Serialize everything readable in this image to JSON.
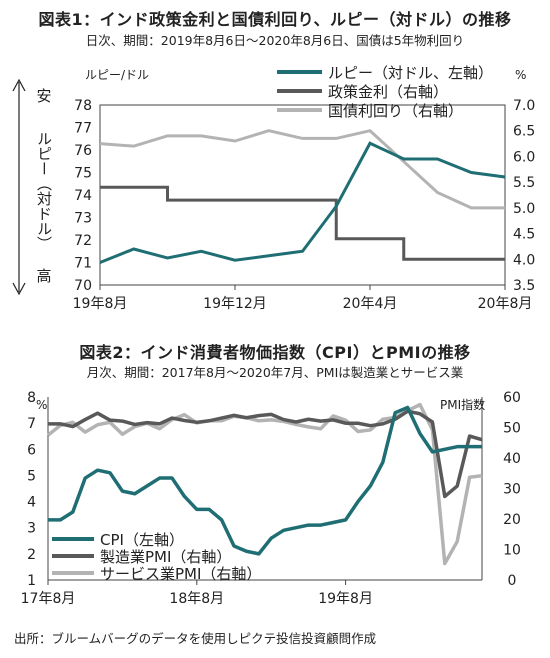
{
  "figure1": {
    "title": "図表1：インド政策金利と国債利回り、ルピー（対ドル）の推移",
    "subtitle": "日次、期間：2019年8月6日～2020年8月6日、国債は5年物利回り",
    "left_unit": "ルピー/ドル",
    "right_unit": "%",
    "side_top": "安",
    "side_mid": "ルピー（対ドル）",
    "side_bottom": "高",
    "legend": [
      "ルピー（対ドル、左軸）",
      "政策金利（右軸）",
      "国債利回り（右軸）"
    ]
  },
  "figure2": {
    "title": "図表2：インド消費者物価指数（CPI）とPMIの推移",
    "subtitle": "月次、期間：2017年8月～2020年7月、PMIは製造業とサービス業",
    "left_unit": "%",
    "right_unit": "PMI指数",
    "legend": [
      "CPI（左軸）",
      "製造業PMI（右軸）",
      "サービス業PMI（右軸）"
    ]
  },
  "source": "出所：ブルームバーグのデータを使用しピクテ投信投資顧問作成",
  "colors": {
    "rupee_cpi": "#1f6e73",
    "policy_mfg": "#595959",
    "bond_services": "#b3b3b3"
  },
  "chart_data": [
    {
      "type": "line",
      "x_ticks": [
        "19年8月",
        "19年12月",
        "20年4月",
        "20年8月"
      ],
      "y_left_ticks": [
        "70",
        "71",
        "72",
        "73",
        "74",
        "75",
        "76",
        "77",
        "78"
      ],
      "y_right_ticks": [
        "3.5",
        "4.0",
        "4.5",
        "5.0",
        "5.5",
        "6.0",
        "6.5",
        "7.0"
      ],
      "ylim_left": [
        70,
        78
      ],
      "ylim_right": [
        3.5,
        7.0
      ],
      "y_left_inverted": true,
      "x": [
        "2019-08",
        "2019-09",
        "2019-10",
        "2019-11",
        "2019-12",
        "2020-01",
        "2020-02",
        "2020-03",
        "2020-04",
        "2020-05",
        "2020-06",
        "2020-07",
        "2020-08"
      ],
      "series": [
        {
          "name": "ルピー（対ドル、左軸）",
          "axis": "left",
          "values": [
            71.0,
            71.6,
            71.2,
            71.5,
            71.1,
            71.3,
            71.5,
            73.5,
            76.3,
            75.6,
            75.6,
            75.0,
            74.8
          ]
        },
        {
          "name": "政策金利（右軸）",
          "axis": "right",
          "values": [
            5.4,
            5.4,
            5.15,
            5.15,
            5.15,
            5.15,
            5.15,
            4.4,
            4.4,
            4.0,
            4.0,
            4.0,
            4.0
          ]
        },
        {
          "name": "国債利回り（右軸）",
          "axis": "right",
          "values": [
            6.25,
            6.2,
            6.4,
            6.4,
            6.3,
            6.5,
            6.35,
            6.35,
            6.5,
            5.9,
            5.3,
            5.0,
            5.0
          ]
        }
      ]
    },
    {
      "type": "line",
      "x_ticks": [
        "17年8月",
        "18年8月",
        "19年8月"
      ],
      "y_left_ticks": [
        "1",
        "2",
        "3",
        "4",
        "5",
        "6",
        "7",
        "8"
      ],
      "y_right_ticks": [
        "0",
        "10",
        "20",
        "30",
        "40",
        "50",
        "60"
      ],
      "ylim_left": [
        1,
        8
      ],
      "ylim_right": [
        0,
        60
      ],
      "x": [
        "2017-08",
        "2017-09",
        "2017-10",
        "2017-11",
        "2017-12",
        "2018-01",
        "2018-02",
        "2018-03",
        "2018-04",
        "2018-05",
        "2018-06",
        "2018-07",
        "2018-08",
        "2018-09",
        "2018-10",
        "2018-11",
        "2018-12",
        "2019-01",
        "2019-02",
        "2019-03",
        "2019-04",
        "2019-05",
        "2019-06",
        "2019-07",
        "2019-08",
        "2019-09",
        "2019-10",
        "2019-11",
        "2019-12",
        "2020-01",
        "2020-02",
        "2020-03",
        "2020-04",
        "2020-05",
        "2020-06",
        "2020-07"
      ],
      "series": [
        {
          "name": "CPI（左軸）",
          "axis": "left",
          "values": [
            3.3,
            3.3,
            3.6,
            4.9,
            5.2,
            5.1,
            4.4,
            4.3,
            4.6,
            4.9,
            4.9,
            4.2,
            3.7,
            3.7,
            3.3,
            2.3,
            2.1,
            2.0,
            2.6,
            2.9,
            3.0,
            3.1,
            3.1,
            3.2,
            3.3,
            4.0,
            4.6,
            5.5,
            7.4,
            7.6,
            6.6,
            5.9,
            6.0,
            6.1,
            6.1,
            6.1
          ]
        },
        {
          "name": "製造業PMI（右軸）",
          "axis": "left2",
          "values": [
            51.2,
            51.2,
            50.3,
            52.6,
            54.7,
            52.4,
            52.1,
            51.0,
            51.6,
            51.2,
            53.1,
            52.3,
            51.7,
            52.2,
            53.1,
            54.0,
            53.2,
            53.9,
            54.3,
            52.6,
            51.8,
            52.7,
            52.1,
            52.5,
            51.4,
            51.4,
            50.6,
            51.2,
            52.7,
            55.3,
            54.5,
            51.8,
            27.4,
            30.8,
            47.2,
            46.0
          ]
        },
        {
          "name": "サービス業PMI（右軸）",
          "axis": "right",
          "values": [
            47.5,
            50.7,
            51.7,
            48.5,
            50.9,
            51.7,
            47.8,
            50.3,
            51.4,
            49.6,
            52.6,
            54.2,
            51.5,
            52.2,
            52.2,
            53.7,
            53.2,
            52.2,
            52.5,
            52.0,
            51.0,
            50.2,
            49.6,
            53.8,
            52.4,
            48.7,
            49.2,
            52.7,
            53.3,
            55.5,
            57.5,
            49.3,
            5.4,
            12.6,
            33.7,
            34.2
          ]
        }
      ]
    }
  ]
}
